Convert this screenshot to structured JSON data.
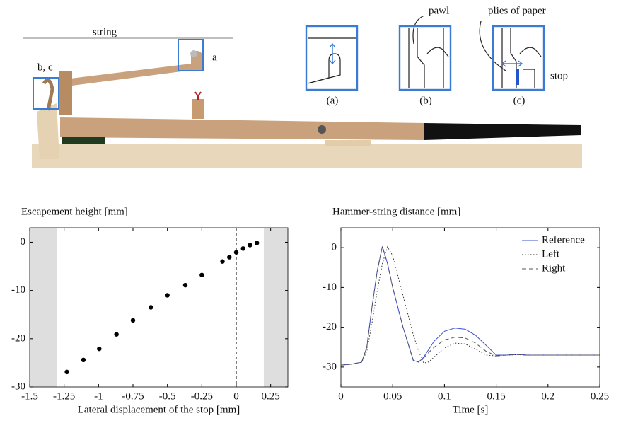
{
  "illustration": {
    "string": "string",
    "a": "a",
    "bc": "b, c",
    "pawl": "pawl",
    "plies": "plies of paper",
    "stop": "stop",
    "inset_a": "(a)",
    "inset_b": "(b)",
    "inset_c": "(c)"
  },
  "chart_data": [
    {
      "type": "scatter",
      "title": "Escapement height [mm]",
      "xlabel": "Lateral displacement of the stop [mm]",
      "x": [
        -1.23,
        -1.11,
        -0.995,
        -0.87,
        -0.75,
        -0.62,
        -0.5,
        -0.37,
        -0.25,
        -0.1,
        -0.05,
        0.0,
        0.05,
        0.1,
        0.15
      ],
      "values": [
        -26.9,
        -24.4,
        -22.1,
        -19.1,
        -16.2,
        -13.5,
        -11.0,
        -8.9,
        -6.8,
        -4.0,
        -3.1,
        -2.1,
        -1.3,
        -0.6,
        -0.15
      ],
      "color": "#000000",
      "xlim": [
        -1.5,
        0.375
      ],
      "xticks": [
        -1.5,
        -1.25,
        -1,
        -0.75,
        -0.5,
        -0.25,
        0,
        0.25
      ],
      "ylim": [
        -30,
        3
      ],
      "yticks": [
        -30,
        -20,
        -10,
        0
      ],
      "shaded_regions": [
        [
          -1.5,
          -1.3
        ],
        [
          0.2,
          0.375
        ]
      ],
      "vline": 0,
      "grid": false
    },
    {
      "type": "line",
      "title": "Hammer-string distance [mm]",
      "xlabel": "Time [s]",
      "x": [
        0,
        0.01,
        0.02,
        0.025,
        0.03,
        0.035,
        0.04,
        0.045,
        0.05,
        0.06,
        0.07,
        0.075,
        0.08,
        0.085,
        0.09,
        0.1,
        0.11,
        0.12,
        0.13,
        0.14,
        0.15,
        0.16,
        0.17,
        0.18,
        0.2,
        0.25
      ],
      "series": [
        {
          "name": "Reference",
          "color": "#3d4fd6",
          "linestyle": "solid",
          "values": [
            -29.5,
            -29.3,
            -28.8,
            -25,
            -15,
            -6,
            0.3,
            -4,
            -10,
            -20,
            -28.3,
            -28.8,
            -27.5,
            -25.5,
            -23.5,
            -21,
            -20.2,
            -20.5,
            -22,
            -24.5,
            -27,
            -27,
            -26.8,
            -27,
            -27,
            -27
          ]
        },
        {
          "name": "Left",
          "color": "#333333",
          "linestyle": "dotted",
          "values": [
            -29.5,
            -29.3,
            -28.8,
            -26,
            -19,
            -11,
            -4,
            0.2,
            -2,
            -12,
            -22,
            -26,
            -29,
            -28.7,
            -27.5,
            -25.2,
            -24,
            -24.2,
            -25.5,
            -27,
            -27.2,
            -27,
            -26.9,
            -27,
            -27,
            -27
          ]
        },
        {
          "name": "Right",
          "color": "#555555",
          "linestyle": "dashed",
          "values": [
            -29.5,
            -29.3,
            -28.8,
            -25,
            -15,
            -6,
            0.3,
            -4,
            -10,
            -20,
            -28.5,
            -28.7,
            -27.7,
            -26.3,
            -25,
            -23.2,
            -22.5,
            -22.7,
            -24,
            -26,
            -27.2,
            -27,
            -26.9,
            -27,
            -27,
            -27
          ]
        }
      ],
      "xlim": [
        0,
        0.25
      ],
      "xticks": [
        0,
        0.05,
        0.1,
        0.15,
        0.2,
        0.25
      ],
      "ylim": [
        -35,
        5
      ],
      "yticks": [
        -30,
        -20,
        -10,
        0
      ],
      "legend": "upper right",
      "grid": false
    }
  ]
}
